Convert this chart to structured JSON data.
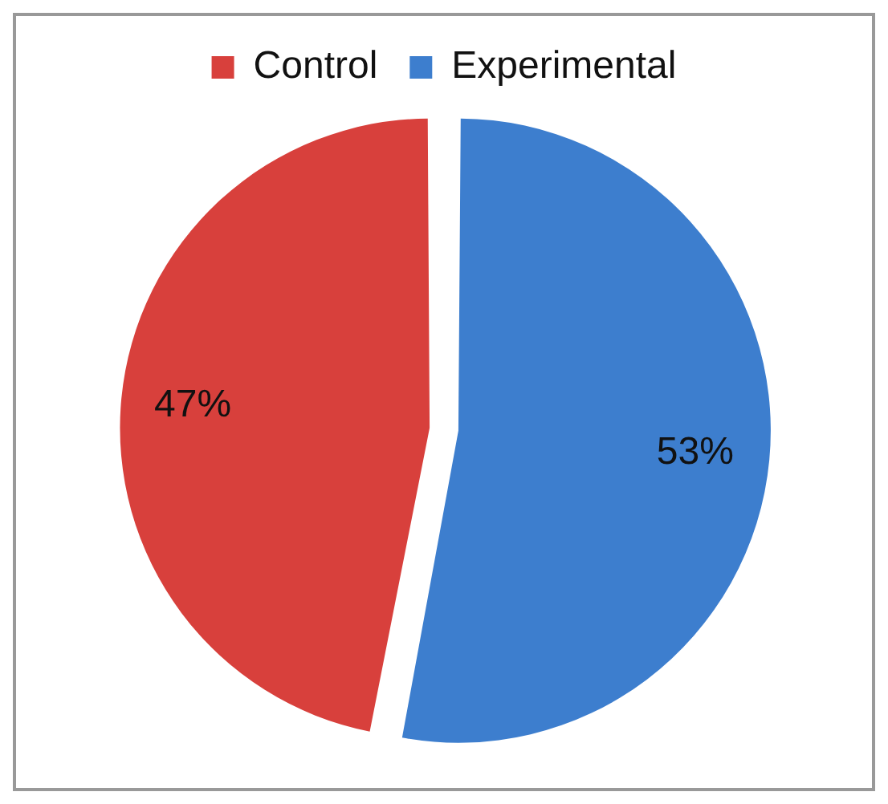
{
  "chart_data": {
    "type": "pie",
    "categories": [
      "Control",
      "Experimental"
    ],
    "values": [
      47,
      53
    ],
    "colors": [
      "#d8403c",
      "#3d7ece"
    ],
    "value_labels": [
      "47%",
      "53%"
    ],
    "legend": "top"
  }
}
